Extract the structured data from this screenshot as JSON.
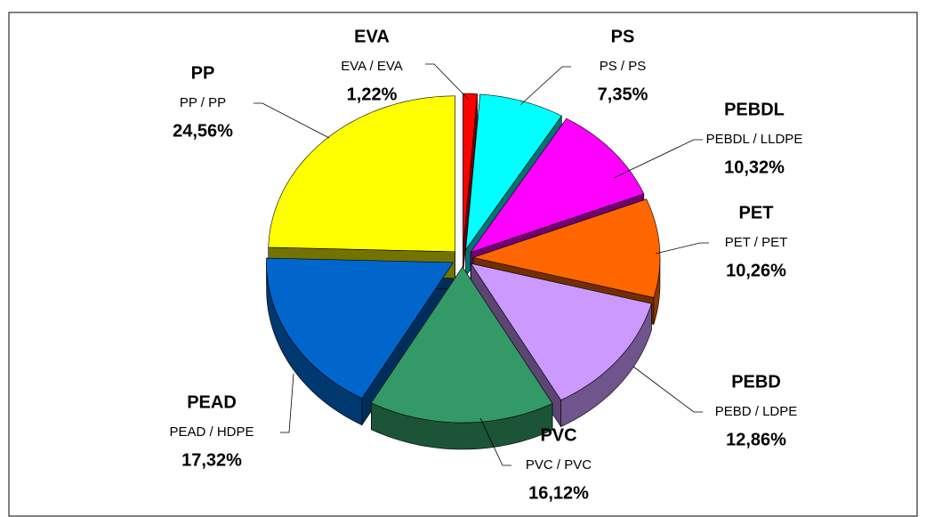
{
  "chart_data": {
    "type": "pie",
    "categories": [
      "EVA",
      "PS",
      "PEBDL",
      "PET",
      "PEBD",
      "PVC",
      "PEAD",
      "PP"
    ],
    "labels": [
      "EVA / EVA",
      "PS / PS",
      "PEBDL / LLDPE",
      "PET / PET",
      "PEBD / LDPE",
      "PVC / PVC",
      "PEAD / HDPE",
      "PP / PP"
    ],
    "values": [
      1.22,
      7.35,
      10.32,
      10.26,
      12.86,
      16.12,
      17.32,
      24.56
    ],
    "value_labels": [
      "1,22%",
      "7,35%",
      "10,32%",
      "10,26%",
      "12,86%",
      "16,12%",
      "17,32%",
      "24,56%"
    ],
    "colors": [
      "#ff0000",
      "#00ffff",
      "#ff00ff",
      "#ff6600",
      "#cc99ff",
      "#339966",
      "#0066cc",
      "#ffff00"
    ]
  }
}
